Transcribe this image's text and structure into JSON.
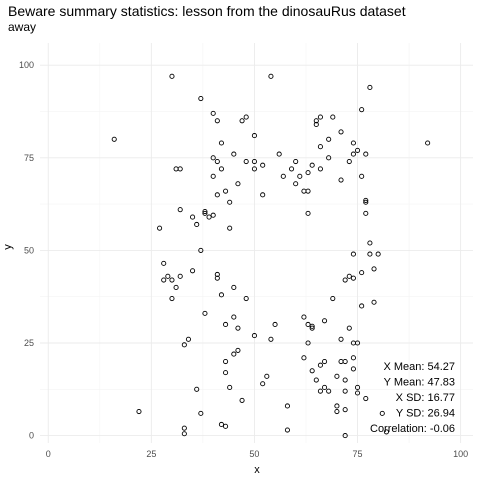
{
  "chart_data": {
    "type": "scatter",
    "title": "Beware summary statistics: lesson from the dinosauRus dataset",
    "subtitle": "away",
    "xlabel": "x",
    "ylabel": "y",
    "xlim": [
      -2,
      103
    ],
    "ylim": [
      -2,
      106
    ],
    "xticks": [
      0,
      25,
      50,
      75,
      100
    ],
    "yticks": [
      0,
      25,
      50,
      75,
      100
    ],
    "grid": true,
    "stats": [
      "X Mean: 54.27",
      "Y Mean: 47.83",
      "X SD: 16.77",
      "Y SD: 26.94",
      "Correlation: -0.06"
    ],
    "points": [
      [
        16,
        80
      ],
      [
        22,
        6.5
      ],
      [
        27,
        56
      ],
      [
        28,
        46.5
      ],
      [
        28,
        42
      ],
      [
        29,
        43
      ],
      [
        30,
        97
      ],
      [
        30,
        42
      ],
      [
        30,
        37
      ],
      [
        31,
        40
      ],
      [
        31,
        72
      ],
      [
        32,
        72
      ],
      [
        32,
        61
      ],
      [
        32,
        43
      ],
      [
        33,
        2
      ],
      [
        33,
        0.5
      ],
      [
        33,
        24.5
      ],
      [
        34,
        26
      ],
      [
        35,
        59
      ],
      [
        35,
        44.5
      ],
      [
        36,
        57
      ],
      [
        36,
        12.5
      ],
      [
        37,
        91
      ],
      [
        37,
        50
      ],
      [
        37,
        6
      ],
      [
        38,
        60
      ],
      [
        38,
        60.5
      ],
      [
        38,
        33
      ],
      [
        39,
        59
      ],
      [
        40,
        87
      ],
      [
        40,
        70
      ],
      [
        40,
        75
      ],
      [
        40,
        59.5
      ],
      [
        41,
        85
      ],
      [
        41,
        74
      ],
      [
        41,
        65
      ],
      [
        41,
        43.5
      ],
      [
        41,
        42.5
      ],
      [
        42,
        79
      ],
      [
        42,
        72
      ],
      [
        42,
        38
      ],
      [
        42,
        3
      ],
      [
        43,
        30
      ],
      [
        43,
        2.5
      ],
      [
        43,
        20
      ],
      [
        43,
        17
      ],
      [
        43,
        66
      ],
      [
        44,
        56
      ],
      [
        44,
        63
      ],
      [
        44,
        13
      ],
      [
        45,
        76
      ],
      [
        45,
        40
      ],
      [
        45,
        32
      ],
      [
        45,
        22
      ],
      [
        46,
        68
      ],
      [
        46,
        29
      ],
      [
        46,
        23
      ],
      [
        47,
        85
      ],
      [
        47,
        9.5
      ],
      [
        48,
        86
      ],
      [
        48,
        74
      ],
      [
        48,
        37
      ],
      [
        50,
        81
      ],
      [
        50,
        74
      ],
      [
        50,
        72
      ],
      [
        50,
        27
      ],
      [
        52,
        73
      ],
      [
        52,
        65
      ],
      [
        52,
        14
      ],
      [
        53,
        16
      ],
      [
        54,
        97
      ],
      [
        54,
        26
      ],
      [
        55,
        30
      ],
      [
        56,
        76
      ],
      [
        57,
        70
      ],
      [
        58,
        8
      ],
      [
        58,
        1.5
      ],
      [
        59,
        72
      ],
      [
        60,
        74
      ],
      [
        60,
        68
      ],
      [
        61,
        70
      ],
      [
        62,
        66
      ],
      [
        62,
        21
      ],
      [
        62,
        32
      ],
      [
        63,
        71
      ],
      [
        63,
        66
      ],
      [
        63,
        60
      ],
      [
        63,
        30
      ],
      [
        63,
        25
      ],
      [
        64,
        73
      ],
      [
        64,
        29
      ],
      [
        64,
        29.5
      ],
      [
        64,
        17.5
      ],
      [
        65,
        85
      ],
      [
        65,
        84
      ],
      [
        65,
        15
      ],
      [
        66,
        78
      ],
      [
        66,
        86
      ],
      [
        66,
        72
      ],
      [
        66,
        19
      ],
      [
        66,
        12
      ],
      [
        67,
        20
      ],
      [
        67,
        13
      ],
      [
        67,
        31
      ],
      [
        68,
        80
      ],
      [
        68,
        75
      ],
      [
        68,
        12
      ],
      [
        69,
        86
      ],
      [
        69,
        37
      ],
      [
        70,
        8
      ],
      [
        70,
        6.5
      ],
      [
        70,
        16
      ],
      [
        71,
        82
      ],
      [
        71,
        69
      ],
      [
        71,
        26
      ],
      [
        71,
        20
      ],
      [
        72,
        42
      ],
      [
        72,
        20
      ],
      [
        72,
        15
      ],
      [
        72,
        12
      ],
      [
        72,
        7
      ],
      [
        72,
        0
      ],
      [
        73,
        74
      ],
      [
        73,
        43
      ],
      [
        73,
        29
      ],
      [
        74,
        79
      ],
      [
        74,
        76
      ],
      [
        74,
        42.5
      ],
      [
        74,
        49
      ],
      [
        74,
        25
      ],
      [
        74,
        21
      ],
      [
        74,
        18
      ],
      [
        75,
        77
      ],
      [
        75,
        25
      ],
      [
        75,
        11.5
      ],
      [
        75,
        13
      ],
      [
        76,
        88
      ],
      [
        76,
        44
      ],
      [
        76,
        35
      ],
      [
        76,
        70
      ],
      [
        77,
        76
      ],
      [
        77,
        60
      ],
      [
        77,
        63
      ],
      [
        77,
        63.5
      ],
      [
        77,
        10
      ],
      [
        78,
        94
      ],
      [
        78,
        52
      ],
      [
        78,
        49
      ],
      [
        79,
        45
      ],
      [
        79,
        36
      ],
      [
        80,
        49
      ],
      [
        81,
        6
      ],
      [
        82,
        1
      ],
      [
        92,
        79
      ]
    ]
  }
}
